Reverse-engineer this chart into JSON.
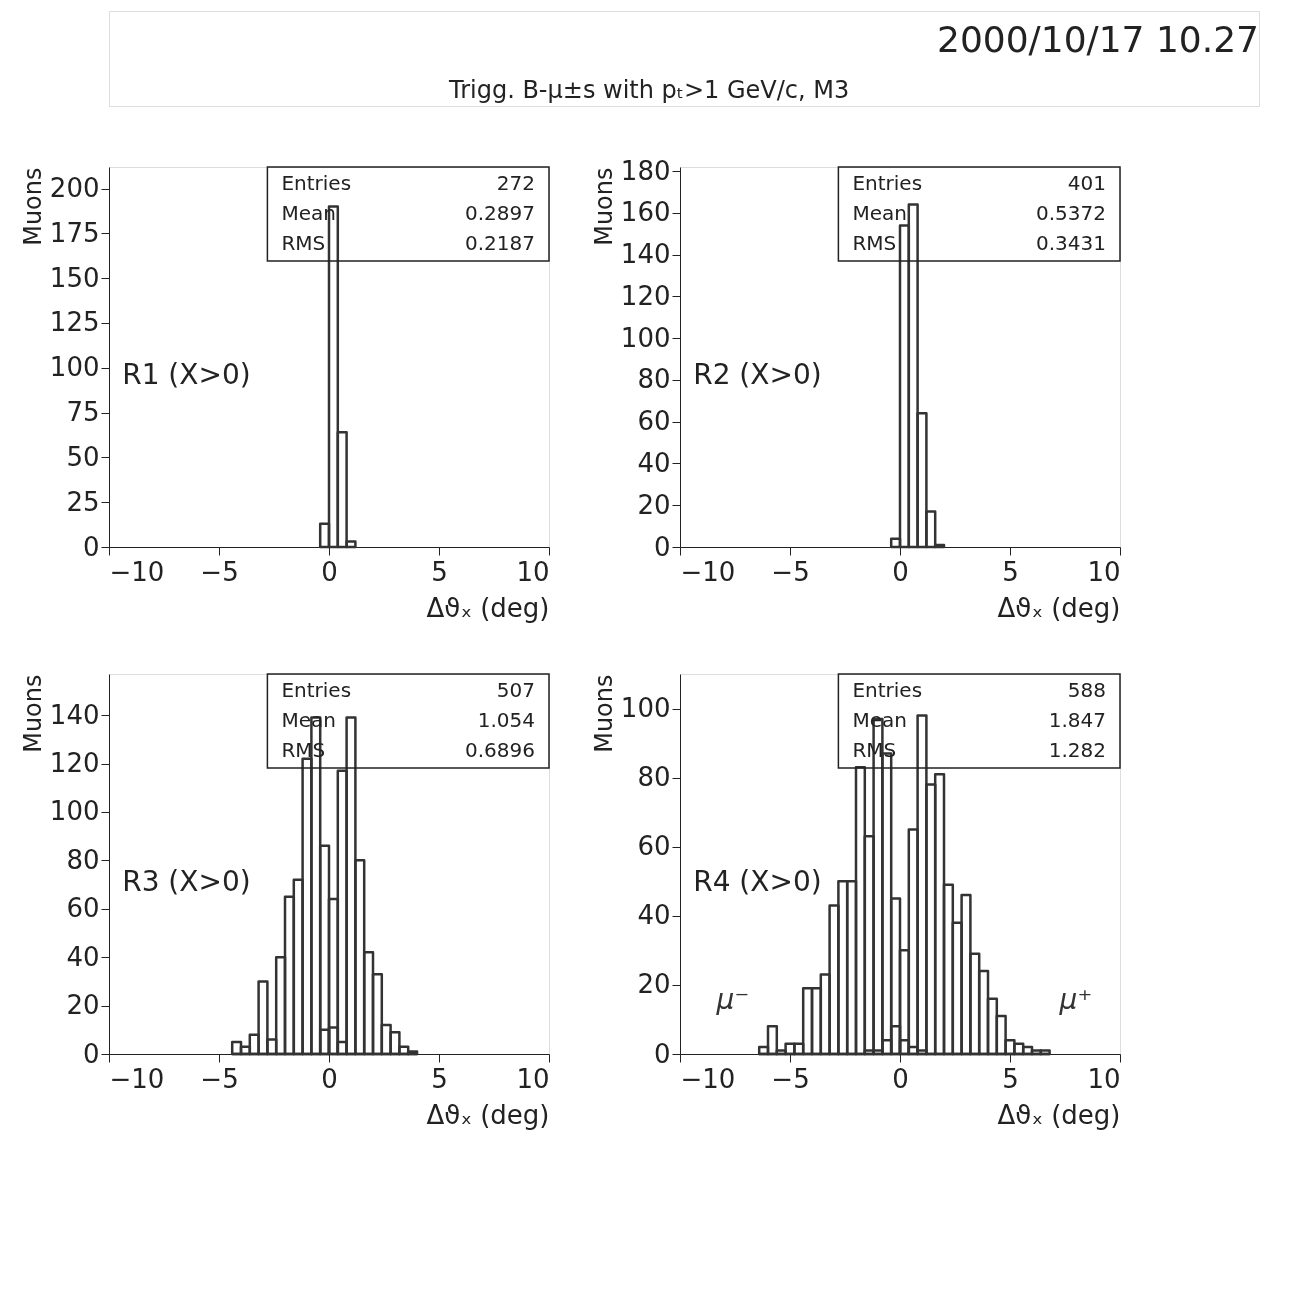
{
  "chart_data": [
    {
      "type": "other",
      "title": "Trigg. B-μ±s with pₜ>1 GeV/c, M3",
      "annotations": [
        "2000/10/17  10.27"
      ]
    },
    {
      "type": "histogram",
      "xlabel": "Δϑₓ (deg)",
      "ylabel": "Muons",
      "bins": [
        -0.4,
        0,
        0.4,
        0.8,
        1.2
      ],
      "values": [
        13,
        190,
        64,
        3
      ],
      "color": "#333333",
      "xlim": [
        -10,
        10
      ],
      "xticks": [
        -10,
        -5,
        0,
        5,
        10
      ],
      "ylim": [
        0,
        212
      ],
      "yticks": [
        0,
        25,
        50,
        75,
        100,
        125,
        150,
        175,
        200
      ],
      "annotations": [
        "R1 (X>0)",
        "Entries 272",
        "Mean 0.2897",
        "RMS 0.2187"
      ]
    },
    {
      "type": "histogram",
      "xlabel": "Δϑₓ (deg)",
      "ylabel": "Muons",
      "bins": [
        -0.4,
        0,
        0.4,
        0.8,
        1.2,
        1.6,
        2.0
      ],
      "values": [
        4,
        154,
        164,
        64,
        17,
        1
      ],
      "color": "#333333",
      "xlim": [
        -10,
        10
      ],
      "xticks": [
        -10,
        -5,
        0,
        5,
        10
      ],
      "ylim": [
        0,
        182
      ],
      "yticks": [
        0,
        20,
        40,
        60,
        80,
        100,
        120,
        140,
        160,
        180
      ],
      "annotations": [
        "R2 (X>0)",
        "Entries 401",
        "Mean 0.5372",
        "RMS 0.3431"
      ]
    },
    {
      "type": "histogram",
      "xlabel": "Δϑₓ (deg)",
      "ylabel": "Muons",
      "bins": [
        -4.4,
        -4.0,
        -3.6,
        -3.2,
        -2.8,
        -2.4,
        -2.0,
        -1.6,
        -1.2,
        -0.8,
        -0.4,
        0,
        0.4,
        0.8,
        1.2,
        1.6,
        2.0,
        2.4,
        2.8,
        3.2,
        3.6,
        4.0
      ],
      "series": [
        {
          "color": "#333333",
          "values": [
            5,
            3,
            8,
            30,
            6,
            40,
            65,
            72,
            122,
            139,
            86,
            11,
            5,
            0,
            0,
            0,
            0,
            0,
            0,
            0,
            0
          ]
        },
        {
          "color": "#333333",
          "values": [
            0,
            0,
            0,
            0,
            0,
            0,
            0,
            0,
            0,
            0,
            10,
            64,
            117,
            139,
            80,
            42,
            33,
            12,
            9,
            3,
            1
          ]
        }
      ],
      "xlim": [
        -10,
        10
      ],
      "xticks": [
        -10,
        -5,
        0,
        5,
        10
      ],
      "ylim": [
        0,
        157
      ],
      "yticks": [
        0,
        20,
        40,
        60,
        80,
        100,
        120,
        140
      ],
      "annotations": [
        "R3 (X>0)",
        "Entries 507",
        "Mean 1.054",
        "RMS 0.6896"
      ]
    },
    {
      "type": "histogram",
      "xlabel": "Δϑₓ (deg)",
      "ylabel": "Muons",
      "bins": [
        -6.4,
        -6.0,
        -5.6,
        -5.2,
        -4.8,
        -4.4,
        -4.0,
        -3.6,
        -3.2,
        -2.8,
        -2.4,
        -2.0,
        -1.6,
        -1.2,
        -0.8,
        -0.4,
        0,
        0.4,
        0.8,
        1.2,
        1.6,
        2.0,
        2.4,
        2.8,
        3.2,
        3.6,
        4.0,
        4.4,
        4.8,
        5.2,
        5.6,
        6.0,
        6.4,
        6.8
      ],
      "series": [
        {
          "name": "μ⁻",
          "color": "#333333",
          "values": [
            2,
            8,
            1,
            3,
            3,
            19,
            19,
            23,
            43,
            50,
            50,
            83,
            63,
            97,
            87,
            45,
            4,
            2,
            1,
            0,
            0,
            0,
            0,
            0,
            0,
            0,
            0,
            0,
            0,
            0,
            0,
            0,
            0
          ]
        },
        {
          "name": "μ⁺",
          "color": "#333333",
          "values": [
            0,
            0,
            0,
            0,
            0,
            0,
            0,
            0,
            0,
            0,
            0,
            0,
            1,
            1,
            4,
            8,
            30,
            65,
            98,
            78,
            81,
            49,
            38,
            46,
            29,
            24,
            16,
            11,
            4,
            3,
            2,
            1,
            1
          ]
        }
      ],
      "xlim": [
        -10,
        10
      ],
      "xticks": [
        -10,
        -5,
        0,
        5,
        10
      ],
      "ylim": [
        0,
        110
      ],
      "yticks": [
        0,
        20,
        40,
        60,
        80,
        100
      ],
      "annotations": [
        "R4 (X>0)",
        "Entries 588",
        "Mean 1.847",
        "RMS 1.282"
      ]
    }
  ]
}
